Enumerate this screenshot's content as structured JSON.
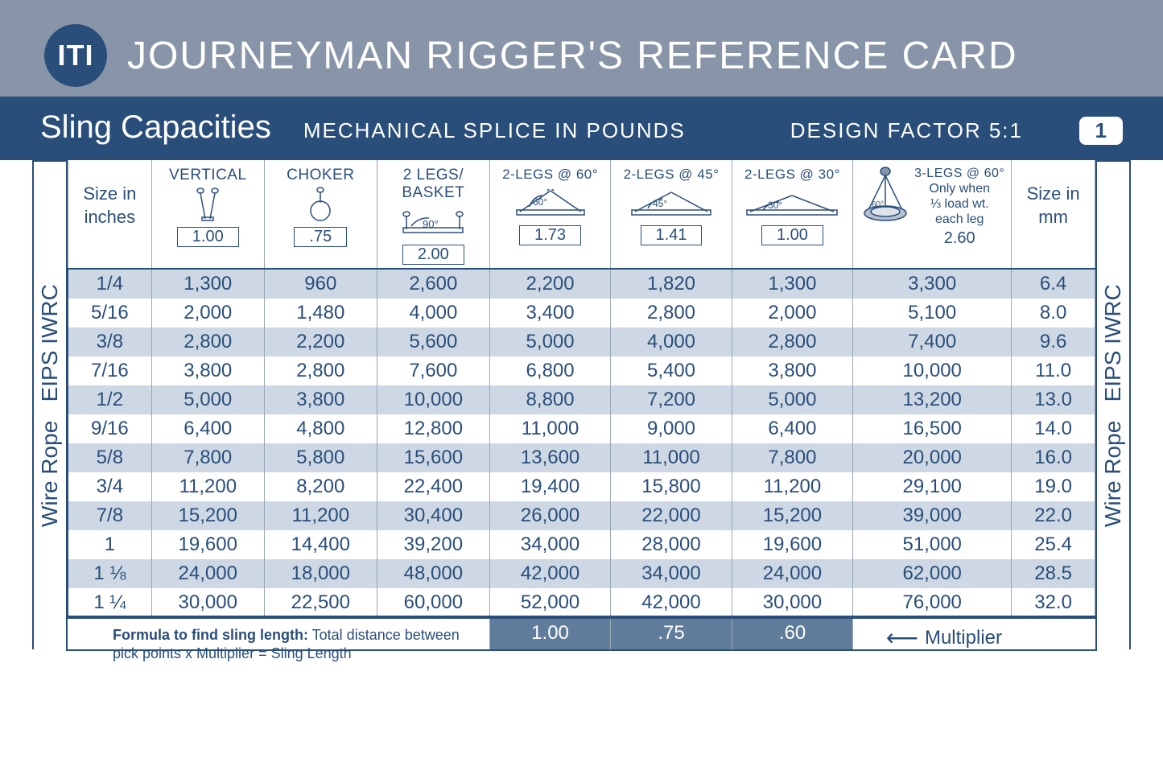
{
  "header": {
    "logo_text": "ITI",
    "title": "JOURNEYMAN RIGGER'S REFERENCE CARD"
  },
  "subheader": {
    "left": "Sling Capacities",
    "mid": "MECHANICAL SPLICE IN POUNDS",
    "right": "DESIGN FACTOR  5:1",
    "page": "1"
  },
  "sidelabel": "Wire Rope   EIPS IWRC",
  "columns": {
    "size_in": {
      "label_l1": "Size in",
      "label_l2": "inches"
    },
    "vertical": {
      "title": "VERTICAL",
      "mult": "1.00"
    },
    "choker": {
      "title": "CHOKER",
      "mult": ".75"
    },
    "basket": {
      "title_l1": "2 LEGS/",
      "title_l2": "BASKET",
      "angle": "90°",
      "mult": "2.00"
    },
    "legs60": {
      "title": "2-LEGS @ 60°",
      "angle": "60°",
      "mult": "1.73"
    },
    "legs45": {
      "title": "2-LEGS @ 45°",
      "angle": "45°",
      "mult": "1.41"
    },
    "legs30": {
      "title": "2-LEGS @ 30°",
      "angle": "30°",
      "mult": "1.00"
    },
    "legs3_60": {
      "title": "3-LEGS @ 60°",
      "sub_l1": "Only when",
      "sub_l2": "⅓ load wt.",
      "sub_l3": "each leg",
      "mult": "2.60"
    },
    "size_mm": {
      "label_l1": "Size in",
      "label_l2": "mm"
    }
  },
  "rows": [
    {
      "in": "1/4",
      "v": "1,300",
      "ch": "960",
      "b": "2,600",
      "l60": "2,200",
      "l45": "1,820",
      "l30": "1,300",
      "l3": "3,300",
      "mm": "6.4"
    },
    {
      "in": "5/16",
      "v": "2,000",
      "ch": "1,480",
      "b": "4,000",
      "l60": "3,400",
      "l45": "2,800",
      "l30": "2,000",
      "l3": "5,100",
      "mm": "8.0"
    },
    {
      "in": "3/8",
      "v": "2,800",
      "ch": "2,200",
      "b": "5,600",
      "l60": "5,000",
      "l45": "4,000",
      "l30": "2,800",
      "l3": "7,400",
      "mm": "9.6"
    },
    {
      "in": "7/16",
      "v": "3,800",
      "ch": "2,800",
      "b": "7,600",
      "l60": "6,800",
      "l45": "5,400",
      "l30": "3,800",
      "l3": "10,000",
      "mm": "11.0"
    },
    {
      "in": "1/2",
      "v": "5,000",
      "ch": "3,800",
      "b": "10,000",
      "l60": "8,800",
      "l45": "7,200",
      "l30": "5,000",
      "l3": "13,200",
      "mm": "13.0"
    },
    {
      "in": "9/16",
      "v": "6,400",
      "ch": "4,800",
      "b": "12,800",
      "l60": "11,000",
      "l45": "9,000",
      "l30": "6,400",
      "l3": "16,500",
      "mm": "14.0"
    },
    {
      "in": "5/8",
      "v": "7,800",
      "ch": "5,800",
      "b": "15,600",
      "l60": "13,600",
      "l45": "11,000",
      "l30": "7,800",
      "l3": "20,000",
      "mm": "16.0"
    },
    {
      "in": "3/4",
      "v": "11,200",
      "ch": "8,200",
      "b": "22,400",
      "l60": "19,400",
      "l45": "15,800",
      "l30": "11,200",
      "l3": "29,100",
      "mm": "19.0"
    },
    {
      "in": "7/8",
      "v": "15,200",
      "ch": "11,200",
      "b": "30,400",
      "l60": "26,000",
      "l45": "22,000",
      "l30": "15,200",
      "l3": "39,000",
      "mm": "22.0"
    },
    {
      "in": "1",
      "v": "19,600",
      "ch": "14,400",
      "b": "39,200",
      "l60": "34,000",
      "l45": "28,000",
      "l30": "19,600",
      "l3": "51,000",
      "mm": "25.4"
    },
    {
      "in": "1 ⅛",
      "v": "24,000",
      "ch": "18,000",
      "b": "48,000",
      "l60": "42,000",
      "l45": "34,000",
      "l30": "24,000",
      "l3": "62,000",
      "mm": "28.5"
    },
    {
      "in": "1 ¼",
      "v": "30,000",
      "ch": "22,500",
      "b": "60,000",
      "l60": "52,000",
      "l45": "42,000",
      "l30": "30,000",
      "l3": "76,000",
      "mm": "32.0"
    }
  ],
  "footer_multipliers": {
    "l60": "1.00",
    "l45": ".75",
    "l30": ".60"
  },
  "formula": {
    "bold": "Formula to find sling length:",
    "rest": " Total distance between pick points x Multiplier = Sling Length"
  },
  "multiplier_label": "Multiplier",
  "colors": {
    "header_bg": "#8895a8",
    "subheader_bg": "#2a4e7a",
    "text": "#2a4e7a",
    "row_stripe": "#cdd8e4",
    "footer_bg": "#5f7c9b",
    "border": "#9aa7b5"
  }
}
